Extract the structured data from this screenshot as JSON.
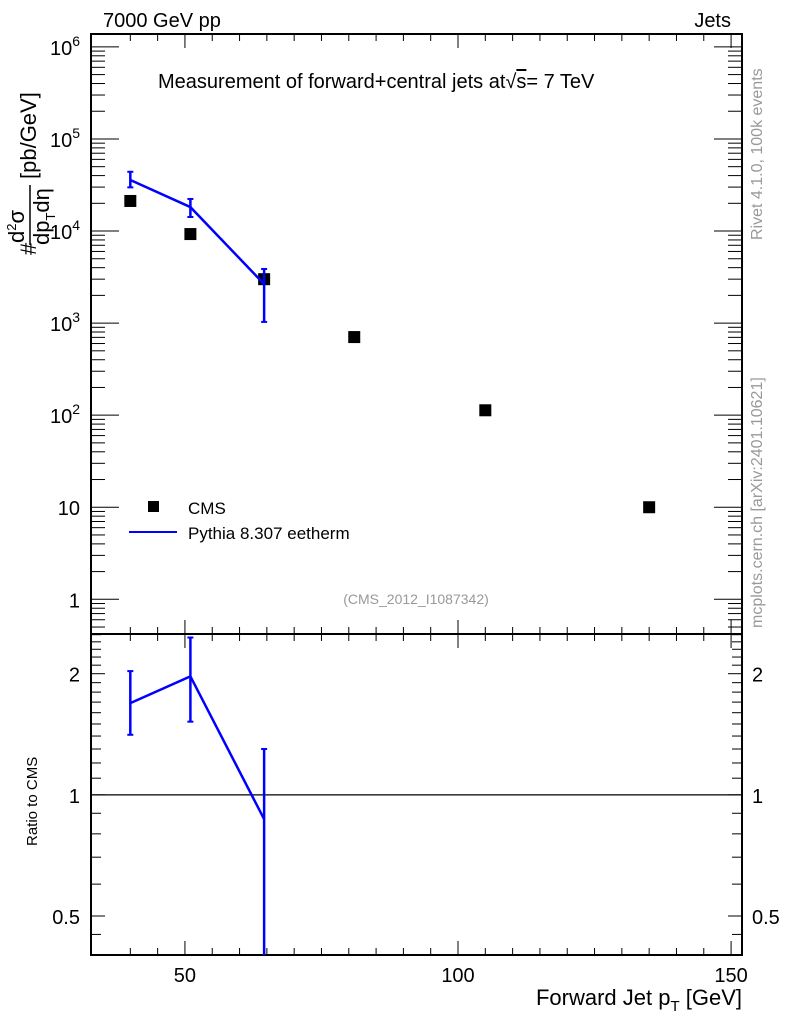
{
  "header": {
    "left": "7000 GeV pp",
    "right": "Jets"
  },
  "side_labels": {
    "top": "Rivet 4.1.0,  100k events",
    "bottom": "mcplots.cern.ch [arXiv:2401.10621]"
  },
  "colors": {
    "data": "#000000",
    "mc": "#0000ff",
    "watermark": "#999999"
  },
  "chart_data": [
    {
      "type": "scatter",
      "title": "Measurement of forward+central jets at √s = 7 TeV",
      "title_parts": {
        "prefix": "Measurement of forward+central jets at",
        "sqrt": "√",
        "s": "s",
        "suffix": "= 7 TeV"
      },
      "ylabel": "# d²σ/dp_T dη [pb/GeV]",
      "ylabel_parts": {
        "hash": "#",
        "num": "d",
        "num_sup": "2",
        "num_tail": "σ",
        "den": "dp",
        "den_sub": "T",
        "den_tail": "dη",
        "unit": "[pb/GeV]"
      },
      "yscale": "log",
      "ylim": [
        0.42,
        1380000
      ],
      "xlim": [
        32.8,
        152
      ],
      "yticks": [
        {
          "v": 1000000,
          "base": "10",
          "exp": "6"
        },
        {
          "v": 100000,
          "base": "10",
          "exp": "5"
        },
        {
          "v": 10000,
          "base": "10",
          "exp": "4"
        },
        {
          "v": 1000,
          "base": "10",
          "exp": "3"
        },
        {
          "v": 100,
          "base": "10",
          "exp": "2"
        },
        {
          "v": 10,
          "base": "10",
          "exp": ""
        },
        {
          "v": 1,
          "base": "1",
          "exp": ""
        }
      ],
      "watermark": "(CMS_2012_I1087342)",
      "legend_position": "bottom-left",
      "series": [
        {
          "name": "CMS",
          "style": "marker",
          "x": [
            40,
            51,
            64.5,
            81,
            105,
            135
          ],
          "y": [
            21200,
            9270,
            3000,
            705,
            113,
            10
          ]
        },
        {
          "name": "Pythia 8.307 eetherm",
          "style": "line",
          "x": [
            40,
            51,
            64.5
          ],
          "y": [
            35800,
            18200,
            2650
          ],
          "yerr_high": [
            44000,
            22300,
            3870
          ],
          "yerr_low": [
            29800,
            14200,
            1030
          ]
        }
      ]
    },
    {
      "type": "line",
      "ylabel": "Ratio to CMS",
      "xlabel": "Forward Jet p_T [GeV]",
      "xlabel_parts": {
        "main": "Forward Jet p",
        "sub": "T",
        "unit": " [GeV]"
      },
      "yscale": "log",
      "ylim": [
        0.4,
        2.51
      ],
      "xlim": [
        32.8,
        152
      ],
      "xticks": [
        {
          "v": 50,
          "label": "50"
        },
        {
          "v": 100,
          "label": "100"
        },
        {
          "v": 150,
          "label": "150"
        }
      ],
      "yticks": [
        {
          "v": 2,
          "label": "2"
        },
        {
          "v": 1,
          "label": "1"
        },
        {
          "v": 0.5,
          "label": "0.5"
        }
      ],
      "reference": 1,
      "series": [
        {
          "name": "Pythia 8.307 eetherm",
          "x": [
            40,
            51,
            64.5
          ],
          "y": [
            1.69,
            1.97,
            0.87
          ],
          "yerr_high": [
            2.03,
            2.46,
            1.3
          ],
          "yerr_low": [
            1.41,
            1.52,
            0.3
          ]
        }
      ]
    }
  ]
}
